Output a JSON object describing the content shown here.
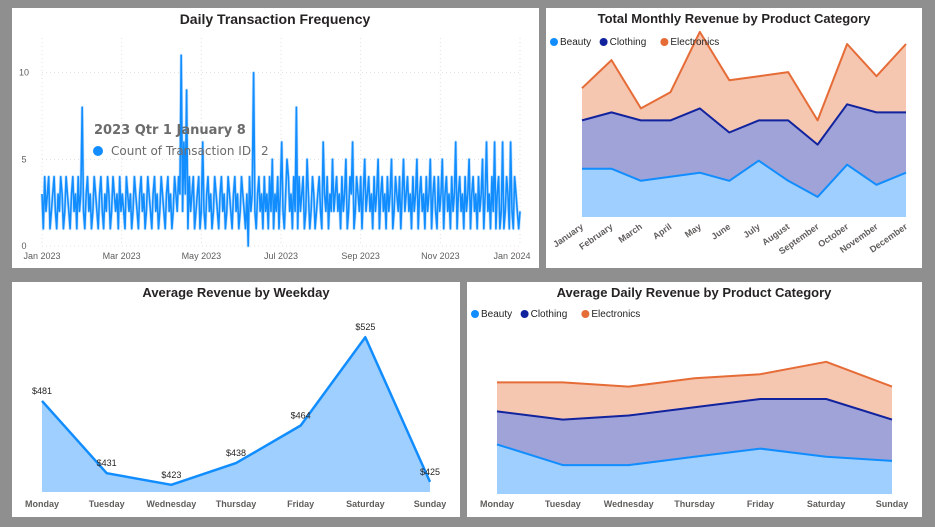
{
  "colors": {
    "background": "#8f8f8f",
    "beauty": "#118DFF",
    "beauty_fill": "#9fcfff",
    "clothing": "#12239E",
    "clothing_fill": "#9fa3d8",
    "electronics": "#E66C37",
    "electronics_fill": "#f5c6b0",
    "line_blue": "#118DFF"
  },
  "chart_data": [
    {
      "id": "daily",
      "type": "line",
      "title": "Daily Transaction Frequency",
      "xlabel": "",
      "ylabel": "",
      "ylim": [
        0,
        12
      ],
      "y_ticks": [
        "0",
        "5",
        "10"
      ],
      "x_ticks": [
        "Jan 2023",
        "Mar 2023",
        "May 2023",
        "Jul 2023",
        "Sep 2023",
        "Nov 2023",
        "Jan 2024"
      ],
      "grid": true,
      "series": [
        {
          "values": [
            3,
            1,
            4,
            2,
            3,
            4,
            1,
            2,
            3,
            4,
            2,
            1,
            3,
            2,
            4,
            3,
            1,
            2,
            4,
            3,
            2,
            1,
            3,
            4,
            2,
            3,
            1,
            4,
            2,
            3,
            8,
            2,
            1,
            3,
            4,
            2,
            3,
            1,
            2,
            4,
            3,
            2,
            1,
            3,
            4,
            2,
            1,
            3,
            2,
            4,
            3,
            1,
            2,
            4,
            3,
            2,
            3,
            1,
            4,
            2,
            3,
            2,
            1,
            4,
            3,
            2,
            3,
            1,
            2,
            4,
            3,
            2,
            1,
            3,
            4,
            2,
            3,
            1,
            2,
            4,
            3,
            2,
            1,
            3,
            4,
            2,
            3,
            1,
            2,
            4,
            3,
            2,
            1,
            3,
            4,
            2,
            3,
            1,
            2,
            4,
            3,
            2,
            4,
            3,
            11,
            2,
            6,
            3,
            9,
            1,
            4,
            2,
            3,
            4,
            1,
            2,
            3,
            4,
            1,
            2,
            6,
            2,
            1,
            3,
            4,
            2,
            3,
            1,
            2,
            4,
            3,
            2,
            1,
            3,
            4,
            2,
            3,
            1,
            2,
            4,
            3,
            2,
            1,
            3,
            4,
            2,
            3,
            1,
            2,
            4,
            3,
            2,
            1,
            3,
            0,
            4,
            2,
            3,
            10,
            2,
            1,
            3,
            4,
            2,
            3,
            1,
            4,
            2,
            3,
            1,
            4,
            2,
            5,
            1,
            3,
            2,
            4,
            1,
            3,
            6,
            2,
            1,
            3,
            5,
            4,
            2,
            3,
            1,
            4,
            2,
            8,
            1,
            4,
            2,
            3,
            4,
            1,
            2,
            5,
            3,
            1,
            2,
            4,
            3,
            1,
            2,
            3,
            4,
            2,
            1,
            6,
            3,
            2,
            4,
            1,
            3,
            2,
            5,
            2,
            3,
            4,
            2,
            3,
            1,
            4,
            2,
            3,
            5,
            1,
            2,
            4,
            3,
            6,
            1,
            2,
            4,
            3,
            2,
            4,
            1,
            3,
            5,
            2,
            3,
            4,
            2,
            3,
            1,
            4,
            2,
            3,
            5,
            1,
            3,
            4,
            2,
            3,
            1,
            4,
            2,
            3,
            5,
            1,
            2,
            4,
            3,
            2,
            4,
            1,
            3,
            5,
            2,
            3,
            4,
            2,
            3,
            1,
            4,
            2,
            3,
            5,
            1,
            3,
            4,
            2,
            3,
            1,
            4,
            2,
            3,
            5,
            1,
            3,
            4,
            2,
            1,
            4,
            2,
            3,
            5,
            1,
            3,
            4,
            2,
            3,
            1,
            4,
            2,
            3,
            6,
            1,
            3,
            4,
            2,
            3,
            1,
            4,
            2,
            3,
            5,
            1,
            3,
            4,
            2,
            3,
            1,
            4,
            2,
            3,
            5,
            1,
            3,
            6,
            2,
            3,
            1,
            4,
            2,
            6,
            1,
            3,
            4,
            1,
            2,
            6,
            1,
            2,
            4,
            3,
            1,
            6,
            2,
            1,
            4,
            3,
            2,
            1,
            2
          ]
        }
      ],
      "tooltip": {
        "header": "2023 Qtr 1 January 8",
        "label": "Count of Transaction ID",
        "value": "2"
      }
    },
    {
      "id": "monthly",
      "type": "area",
      "title": "Total Monthly Revenue by Product Category",
      "categories": [
        "January",
        "February",
        "March",
        "April",
        "May",
        "June",
        "July",
        "August",
        "September",
        "October",
        "November",
        "December"
      ],
      "stacked": true,
      "legend_position": "top-left",
      "series": [
        {
          "name": "Beauty",
          "values": [
            12,
            12,
            9,
            10,
            11,
            9,
            14,
            9,
            5,
            13,
            8,
            11
          ]
        },
        {
          "name": "Clothing",
          "values": [
            12,
            14,
            15,
            14,
            16,
            12,
            10,
            15,
            13,
            15,
            18,
            15
          ]
        },
        {
          "name": "Electronics",
          "values": [
            8,
            13,
            3,
            7,
            19,
            13,
            11,
            12,
            6,
            15,
            9,
            17
          ]
        }
      ]
    },
    {
      "id": "weekday",
      "type": "area",
      "title": "Average Revenue by Weekday",
      "categories": [
        "Monday",
        "Tuesday",
        "Wednesday",
        "Thursday",
        "Friday",
        "Saturday",
        "Sunday"
      ],
      "ylim": [
        418,
        530
      ],
      "series": [
        {
          "values": [
            481,
            431,
            423,
            438,
            464,
            525,
            425
          ],
          "labels": [
            "$481",
            "$431",
            "$423",
            "$438",
            "$464",
            "$525",
            "$425"
          ]
        }
      ]
    },
    {
      "id": "daily_cat",
      "type": "area",
      "title": "Average Daily Revenue by Product Category",
      "categories": [
        "Monday",
        "Tuesday",
        "Wednesday",
        "Thursday",
        "Friday",
        "Saturday",
        "Sunday"
      ],
      "stacked": true,
      "legend_position": "top-left",
      "series": [
        {
          "name": "Beauty",
          "values": [
            12,
            7,
            7,
            9,
            11,
            9,
            8
          ]
        },
        {
          "name": "Clothing",
          "values": [
            8,
            11,
            12,
            12,
            12,
            14,
            10
          ]
        },
        {
          "name": "Electronics",
          "values": [
            7,
            9,
            7,
            7,
            6,
            9,
            8
          ]
        }
      ]
    }
  ]
}
